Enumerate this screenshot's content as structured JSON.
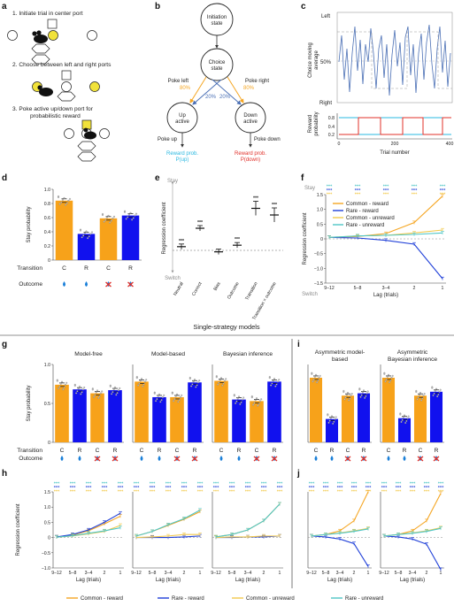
{
  "colors": {
    "common_reward": "#f5a623",
    "rare_reward": "#1f3fd8",
    "common_unreward": "#f2c94c",
    "rare_unreward": "#4fc6c6",
    "orange_bar": "#f7a21a",
    "blue_bar": "#1111ee",
    "trace_blue": "#4a6fb5",
    "reward_red": "#e0302a",
    "reward_cyan": "#2ab8e0"
  },
  "panel_labels": {
    "a": "a",
    "b": "b",
    "c": "c",
    "d": "d",
    "e": "e",
    "f": "f",
    "g": "g",
    "h": "h",
    "i": "i",
    "j": "j"
  },
  "panel_a": {
    "step1": "1. Initiate trial in center port",
    "step2": "2. Choose between left and right ports",
    "step3a": "3. Poke active up/down port for",
    "step3b": "probabilistic reward"
  },
  "panel_b": {
    "initiation": [
      "Initiation",
      "state"
    ],
    "choice": [
      "Choice",
      "state"
    ],
    "up": [
      "Up",
      "active"
    ],
    "down": [
      "Down",
      "active"
    ],
    "poke_left": "Poke left",
    "poke_right": "Poke right",
    "p80_left": "80%",
    "p80_right": "80%",
    "p20_left": "20%",
    "p20_right": "20%",
    "poke_up": "Poke up",
    "poke_down": "Poke down",
    "reward_up": [
      "Reward prob.",
      "P(up)"
    ],
    "reward_down": [
      "Reward prob.",
      "P(down)"
    ]
  },
  "panel_c": {
    "ylabel_top": [
      "Choice moving",
      "average"
    ],
    "tick_left": "Left",
    "tick_50": "50%",
    "tick_right": "Right",
    "ylabel_bottom": [
      "Reward",
      "probability"
    ],
    "yticks_bottom": [
      "0.8",
      "0.4",
      "0.2"
    ],
    "xticks": [
      "0",
      "200",
      "400"
    ],
    "xlabel": "Trial number"
  },
  "stay_labels": {
    "ylabel": "Stay probability",
    "transition": "Transition",
    "outcome": "Outcome",
    "transitions": [
      "C",
      "R",
      "C",
      "R"
    ]
  },
  "panel_d_yticks": [
    "1.0",
    "0.8",
    "0.6",
    "0.4",
    "0.2",
    "0"
  ],
  "panel_e": {
    "stay": "Stay",
    "switch": "Switch",
    "ylabel": "Regression coefficient",
    "stars": [
      "***",
      "***",
      "***",
      "***",
      "***"
    ],
    "xlabels": [
      "Neutral",
      "Correct",
      "Bias",
      "Outcome",
      "Transition",
      "Transition × outcome"
    ]
  },
  "panel_f": {
    "stay": "Stay",
    "switch": "Switch",
    "ylabel": "Regression coefficient",
    "xlabel": "Lag (trials)",
    "xticks": [
      "9–12",
      "5–8",
      "3–4",
      "2",
      "1"
    ],
    "yticks": [
      "1.5",
      "1.0",
      "0.5",
      "0",
      "−0.5",
      "−1.0",
      "−1.5"
    ],
    "legend": [
      "Common - reward",
      "Rare - reward",
      "Common - unreward",
      "Rare - unreward"
    ]
  },
  "section_title": "Single-strategy models",
  "panel_g": {
    "titles": [
      "Model-free",
      "Model-based",
      "Bayesian inference"
    ],
    "yticks": [
      "1.0",
      "0.5",
      "0"
    ]
  },
  "panel_i": {
    "titles": [
      [
        "Asymmetric model-",
        "based"
      ],
      [
        "Asymmetric",
        "Bayesian inference"
      ]
    ]
  },
  "panel_h": {
    "ylabel": "Regression coefficient",
    "xlabel": "Lag (trials)",
    "xticks": [
      "9–12",
      "5–8",
      "3–4",
      "2",
      "1"
    ],
    "yticks": [
      "1.5",
      "1.0",
      "0.5",
      "0",
      "−0.5",
      "−1.0"
    ]
  },
  "legend_bottom": [
    "Common - reward",
    "Rare - reward",
    "Common - unreward",
    "Rare - unreward"
  ],
  "chart_data": [
    {
      "id": "d",
      "type": "bar",
      "categories": [
        "C",
        "R",
        "C",
        "R"
      ],
      "values": [
        0.84,
        0.37,
        0.59,
        0.63
      ],
      "ylim": [
        0,
        1.0
      ],
      "ylabel": "Stay probability"
    },
    {
      "id": "e",
      "type": "scatter",
      "categories": [
        "Neutral",
        "Correct",
        "Bias",
        "Outcome",
        "Transition",
        "Transition × outcome"
      ],
      "values": [
        0.05,
        0.3,
        -0.02,
        0.07,
        0.57,
        0.48
      ],
      "ylabel": "Regression coefficient"
    },
    {
      "id": "f",
      "type": "line",
      "x": [
        "9–12",
        "5–8",
        "3–4",
        "2",
        "1"
      ],
      "ylim": [
        -1.5,
        1.5
      ],
      "series": [
        {
          "name": "Common - reward",
          "values": [
            0.05,
            0.08,
            0.18,
            0.55,
            1.45
          ]
        },
        {
          "name": "Rare - reward",
          "values": [
            0.05,
            0.03,
            -0.05,
            -0.18,
            -1.35
          ]
        },
        {
          "name": "Common - unreward",
          "values": [
            0.05,
            0.1,
            0.12,
            0.2,
            0.3
          ]
        },
        {
          "name": "Rare - unreward",
          "values": [
            0.05,
            0.1,
            0.12,
            0.15,
            0.2
          ]
        }
      ]
    },
    {
      "id": "g-model-free",
      "type": "bar",
      "categories": [
        "C",
        "R",
        "C",
        "R"
      ],
      "values": [
        0.74,
        0.68,
        0.63,
        0.67
      ],
      "ylim": [
        0,
        1.0
      ]
    },
    {
      "id": "g-model-based",
      "type": "bar",
      "categories": [
        "C",
        "R",
        "C",
        "R"
      ],
      "values": [
        0.78,
        0.58,
        0.58,
        0.77
      ],
      "ylim": [
        0,
        1.0
      ]
    },
    {
      "id": "g-bayesian",
      "type": "bar",
      "categories": [
        "C",
        "R",
        "C",
        "R"
      ],
      "values": [
        0.79,
        0.55,
        0.53,
        0.78
      ],
      "ylim": [
        0,
        1.0
      ]
    },
    {
      "id": "i-asym-model-based",
      "type": "bar",
      "categories": [
        "C",
        "R",
        "C",
        "R"
      ],
      "values": [
        0.83,
        0.3,
        0.6,
        0.63
      ],
      "ylim": [
        0,
        1.0
      ]
    },
    {
      "id": "i-asym-bayesian",
      "type": "bar",
      "categories": [
        "C",
        "R",
        "C",
        "R"
      ],
      "values": [
        0.83,
        0.31,
        0.6,
        0.65
      ],
      "ylim": [
        0,
        1.0
      ]
    },
    {
      "id": "h-model-free",
      "type": "line",
      "x": [
        "9–12",
        "5–8",
        "3–4",
        "2",
        "1"
      ],
      "ylim": [
        -1.0,
        1.5
      ],
      "series": [
        {
          "name": "Common - reward",
          "values": [
            0.02,
            0.08,
            0.22,
            0.45,
            0.7
          ]
        },
        {
          "name": "Rare - reward",
          "values": [
            0.02,
            0.1,
            0.25,
            0.5,
            0.8
          ]
        },
        {
          "name": "Common - unreward",
          "values": [
            0.01,
            0.05,
            0.12,
            0.2,
            0.4
          ]
        },
        {
          "name": "Rare - unreward",
          "values": [
            0.01,
            0.06,
            0.14,
            0.22,
            0.32
          ]
        }
      ]
    },
    {
      "id": "h-model-based",
      "type": "line",
      "x": [
        "9–12",
        "5–8",
        "3–4",
        "2",
        "1"
      ],
      "ylim": [
        -1.0,
        1.5
      ],
      "series": [
        {
          "name": "Common - reward",
          "values": [
            0.05,
            0.2,
            0.4,
            0.6,
            0.85
          ]
        },
        {
          "name": "Rare - reward",
          "values": [
            0.0,
            0.0,
            0.0,
            0.02,
            0.05
          ]
        },
        {
          "name": "Common - unreward",
          "values": [
            0.0,
            0.02,
            0.05,
            0.1,
            0.1
          ]
        },
        {
          "name": "Rare - unreward",
          "values": [
            0.05,
            0.2,
            0.42,
            0.62,
            0.9
          ]
        }
      ]
    },
    {
      "id": "h-bayesian",
      "type": "line",
      "x": [
        "9–12",
        "5–8",
        "3–4",
        "2",
        "1"
      ],
      "ylim": [
        -1.0,
        1.5
      ],
      "series": [
        {
          "name": "Common - reward",
          "values": [
            0.02,
            0.1,
            0.25,
            0.55,
            1.1
          ]
        },
        {
          "name": "Rare - reward",
          "values": [
            0.0,
            0.0,
            0.02,
            0.02,
            0.05
          ]
        },
        {
          "name": "Common - unreward",
          "values": [
            0.0,
            0.02,
            0.02,
            0.05,
            0.05
          ]
        },
        {
          "name": "Rare - unreward",
          "values": [
            0.02,
            0.1,
            0.25,
            0.55,
            1.1
          ]
        }
      ]
    },
    {
      "id": "j-asym-model-based",
      "type": "line",
      "x": [
        "9–12",
        "5–8",
        "3–4",
        "2",
        "1"
      ],
      "ylim": [
        -1.0,
        1.5
      ],
      "series": [
        {
          "name": "Common - reward",
          "values": [
            0.05,
            0.1,
            0.22,
            0.55,
            1.5
          ]
        },
        {
          "name": "Rare - reward",
          "values": [
            0.05,
            0.02,
            -0.05,
            -0.2,
            -0.95
          ]
        },
        {
          "name": "Common - unreward",
          "values": [
            0.05,
            0.1,
            0.15,
            0.22,
            0.3
          ]
        },
        {
          "name": "Rare - unreward",
          "values": [
            0.05,
            0.1,
            0.14,
            0.2,
            0.28
          ]
        }
      ]
    },
    {
      "id": "j-asym-bayesian",
      "type": "line",
      "x": [
        "9–12",
        "5–8",
        "3–4",
        "2",
        "1"
      ],
      "ylim": [
        -1.0,
        1.5
      ],
      "series": [
        {
          "name": "Common - reward",
          "values": [
            0.05,
            0.1,
            0.22,
            0.55,
            1.45
          ]
        },
        {
          "name": "Rare - reward",
          "values": [
            0.05,
            0.02,
            -0.05,
            -0.22,
            -1.05
          ]
        },
        {
          "name": "Common - unreward",
          "values": [
            0.05,
            0.1,
            0.15,
            0.22,
            0.32
          ]
        },
        {
          "name": "Rare - unreward",
          "values": [
            0.05,
            0.1,
            0.14,
            0.2,
            0.3
          ]
        }
      ]
    }
  ]
}
